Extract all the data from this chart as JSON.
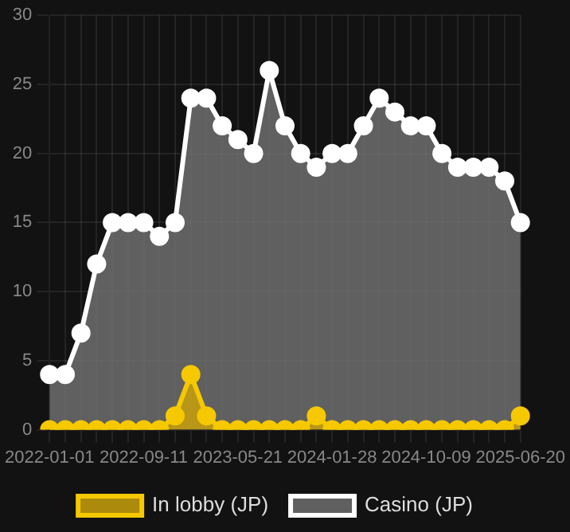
{
  "chart_data": {
    "type": "area",
    "categories": [
      "2022-01-01",
      null,
      null,
      null,
      null,
      null,
      "2022-09-11",
      null,
      null,
      null,
      null,
      null,
      "2023-05-21",
      null,
      null,
      null,
      null,
      null,
      "2024-01-28",
      null,
      null,
      null,
      null,
      null,
      "2024-10-09",
      null,
      null,
      null,
      null,
      null,
      "2025-06-20"
    ],
    "series": [
      {
        "name": "In lobby (JP)",
        "color": "#f5c800",
        "values": [
          0,
          0,
          0,
          0,
          0,
          0,
          0,
          0,
          1,
          4,
          1,
          0,
          0,
          0,
          0,
          0,
          0,
          1,
          0,
          0,
          0,
          0,
          0,
          0,
          0,
          0,
          0,
          0,
          0,
          0,
          1
        ]
      },
      {
        "name": "Casino (JP)",
        "color": "#ffffff",
        "values": [
          4,
          4,
          7,
          12,
          15,
          15,
          15,
          14,
          15,
          24,
          24,
          22,
          21,
          20,
          26,
          22,
          20,
          19,
          20,
          20,
          22,
          24,
          23,
          22,
          22,
          20,
          19,
          19,
          19,
          18,
          15
        ]
      }
    ],
    "ylim": [
      0,
      30
    ],
    "yticks": [
      0,
      5,
      10,
      15,
      20,
      25,
      30
    ],
    "grid": true,
    "legend": "bottom",
    "marker": "circle",
    "line_style": "solid"
  }
}
